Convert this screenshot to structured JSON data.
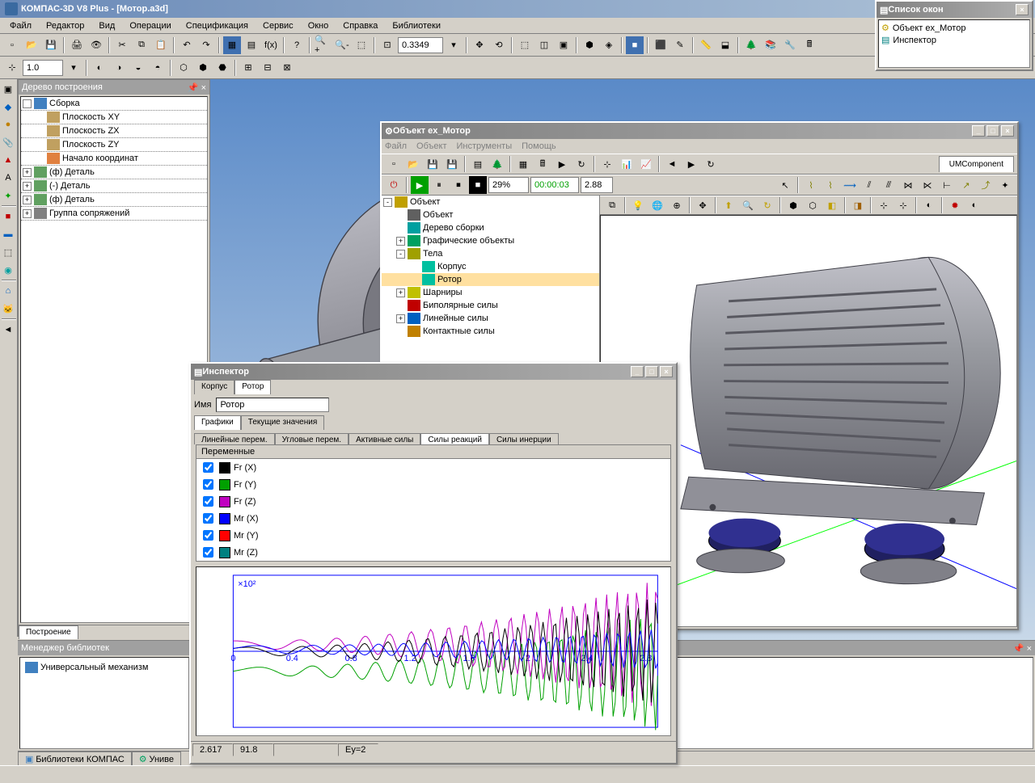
{
  "app": {
    "title": "КОМПАС-3D V8 Plus - [Мотор.a3d]"
  },
  "mainMenu": [
    "Файл",
    "Редактор",
    "Вид",
    "Операции",
    "Спецификация",
    "Сервис",
    "Окно",
    "Справка",
    "Библиотеки"
  ],
  "toolbar1": {
    "zoom_value": "0.3349"
  },
  "toolbar2": {
    "scale_value": "1.0"
  },
  "treePanel": {
    "title": "Дерево построения",
    "tab": "Построение",
    "items": [
      {
        "label": "Сборка",
        "icon": "#4080c0",
        "exp": "",
        "indent": 0
      },
      {
        "label": "Плоскость XY",
        "icon": "#c0a060",
        "indent": 1
      },
      {
        "label": "Плоскость ZX",
        "icon": "#c0a060",
        "indent": 1
      },
      {
        "label": "Плоскость ZY",
        "icon": "#c0a060",
        "indent": 1
      },
      {
        "label": "Начало координат",
        "icon": "#e08040",
        "indent": 1
      },
      {
        "label": "(ф) Деталь",
        "icon": "#60a060",
        "exp": "+",
        "indent": 0
      },
      {
        "label": "(-) Деталь",
        "icon": "#60a060",
        "exp": "+",
        "indent": 0
      },
      {
        "label": "(ф) Деталь",
        "icon": "#60a060",
        "exp": "+",
        "indent": 0
      },
      {
        "label": "Группа сопряжений",
        "icon": "#808080",
        "exp": "+",
        "indent": 0
      }
    ]
  },
  "libManager": {
    "title": "Менеджер библиотек",
    "item": "Универсальный механизм",
    "tab1": "Библиотеки КОМПАС",
    "tab2": "Униве"
  },
  "winList": {
    "title": "Список окон",
    "items": [
      "Объект ex_Мотор",
      "Инспектор"
    ]
  },
  "objWindow": {
    "title": "Объект ex_Мотор",
    "menu": [
      "Файл",
      "Объект",
      "Инструменты",
      "Помощь"
    ],
    "percent": "29%",
    "time": "00:00:03",
    "time2": "2.88",
    "tab": "UMComponent",
    "tree": [
      {
        "label": "Объект",
        "icon": "#c0a000",
        "exp": "-",
        "indent": 0
      },
      {
        "label": "Объект",
        "icon": "#606060",
        "indent": 1
      },
      {
        "label": "Дерево сборки",
        "icon": "#00a0a0",
        "indent": 1
      },
      {
        "label": "Графические объекты",
        "icon": "#00a060",
        "exp": "+",
        "indent": 1
      },
      {
        "label": "Тела",
        "icon": "#a0a000",
        "exp": "-",
        "indent": 1
      },
      {
        "label": "Корпус",
        "icon": "#00c0a0",
        "indent": 2
      },
      {
        "label": "Ротор",
        "icon": "#00c0a0",
        "indent": 2,
        "sel": true
      },
      {
        "label": "Шарниры",
        "icon": "#c0c000",
        "exp": "+",
        "indent": 1
      },
      {
        "label": "Биполярные силы",
        "icon": "#c00000",
        "indent": 1
      },
      {
        "label": "Линейные силы",
        "icon": "#0060c0",
        "exp": "+",
        "indent": 1
      },
      {
        "label": "Контактные силы",
        "icon": "#c08000",
        "indent": 1
      }
    ]
  },
  "inspector": {
    "title": "Инспектор",
    "tabs_top": [
      "Корпус",
      "Ротор"
    ],
    "tab_top_active": 1,
    "name_label": "Имя",
    "name_value": "Ротор",
    "tabs_mid": [
      "Графики",
      "Текущие значения"
    ],
    "tab_mid_active": 0,
    "tabs_sub": [
      "Линейные перем.",
      "Угловые перем.",
      "Активные силы",
      "Силы реакций",
      "Силы инерции"
    ],
    "tab_sub_active": 3,
    "vars_header": "Переменные",
    "vars": [
      {
        "label": "Fr (X)",
        "color": "#000000"
      },
      {
        "label": "Fr (Y)",
        "color": "#00a000"
      },
      {
        "label": "Fr (Z)",
        "color": "#c000c0"
      },
      {
        "label": "Mr (X)",
        "color": "#0000ff"
      },
      {
        "label": "Mr (Y)",
        "color": "#ff0000"
      },
      {
        "label": "Mr (Z)",
        "color": "#008080"
      }
    ],
    "chart": {
      "ylabel": "×10²",
      "xmin": 0,
      "xmax": 2.88,
      "xticks": [
        0,
        0.4,
        0.8,
        1.2,
        1.6,
        2,
        2.4,
        2.8
      ],
      "ymin": -150,
      "ymax": 150,
      "border_color": "#0000ff",
      "axis_color": "#0000ff",
      "bg": "#ffffff"
    },
    "status": [
      "2.617",
      "91.8",
      "Ey=2"
    ]
  },
  "colors": {
    "titlebar_start": "#6a8ab8",
    "panel_bg": "#d4d0c8"
  }
}
